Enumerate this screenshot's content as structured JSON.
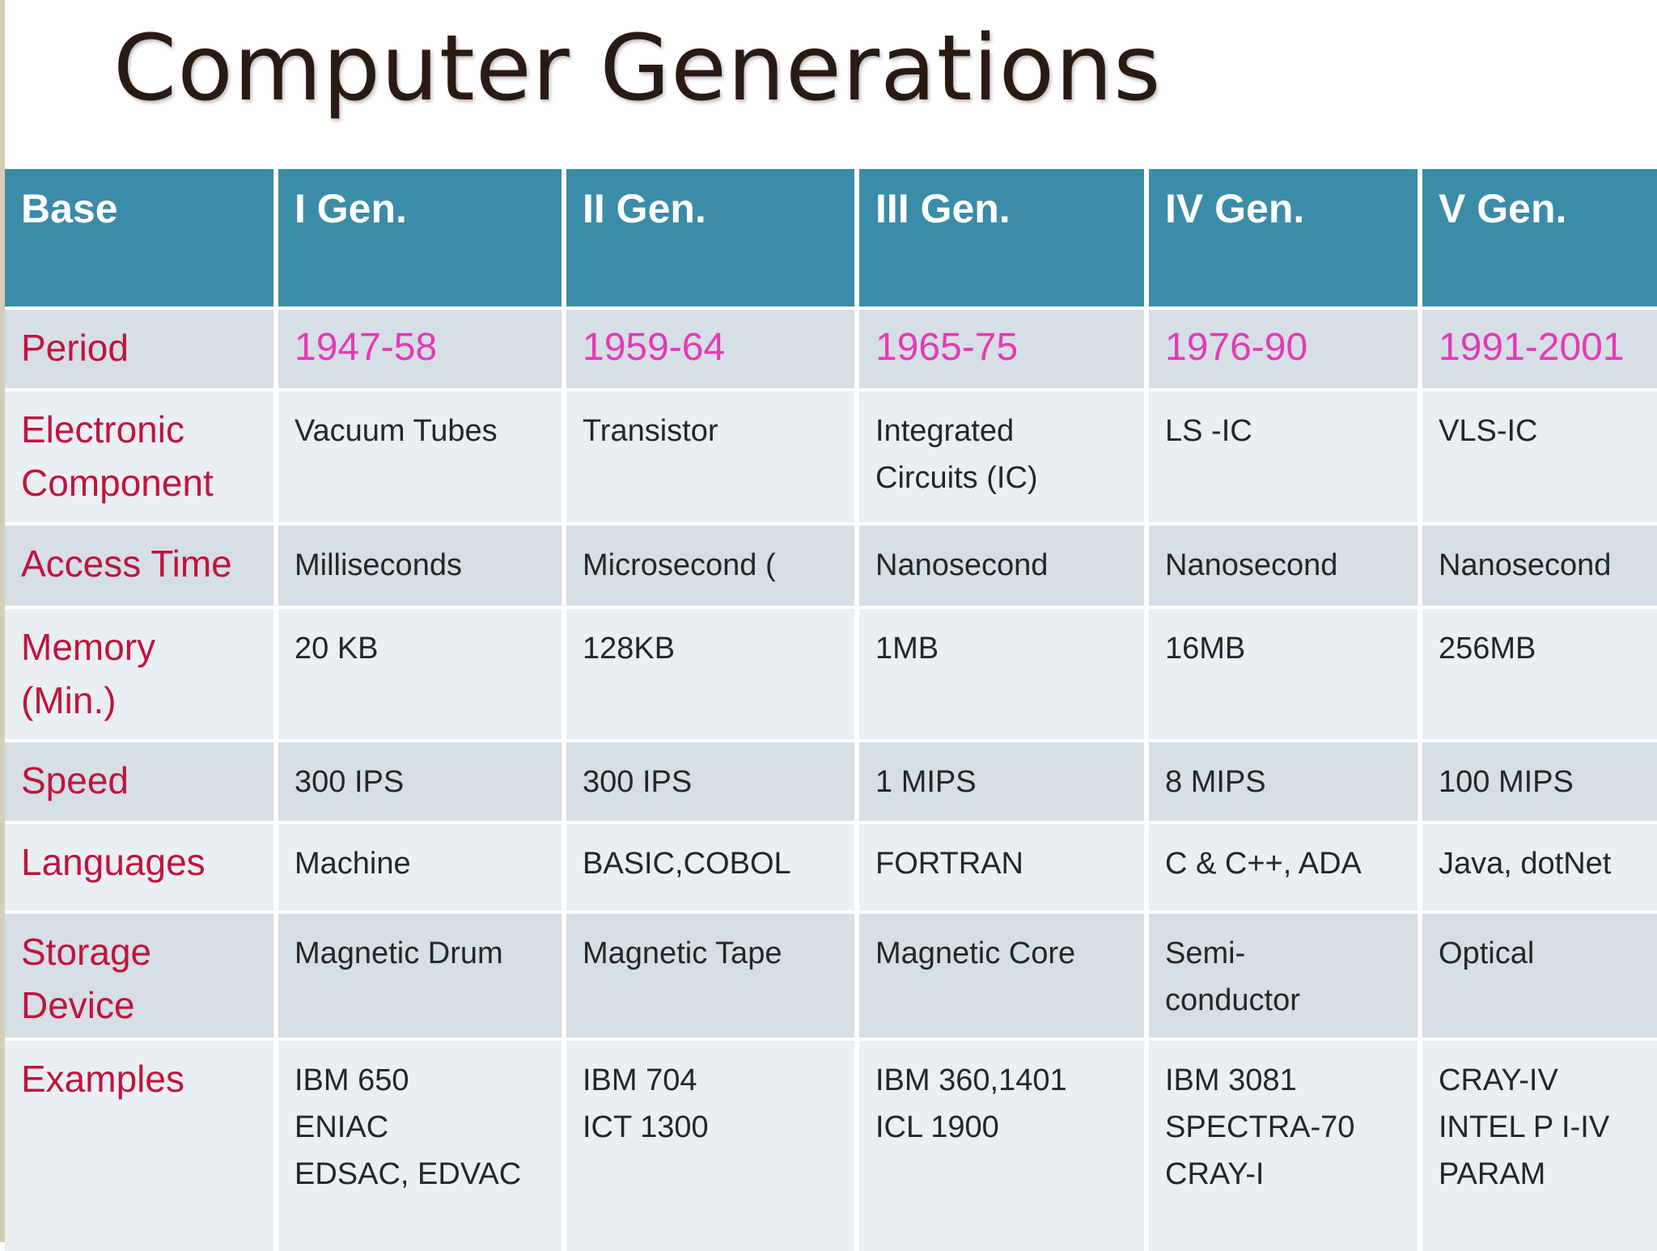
{
  "title": "Computer Generations",
  "table": {
    "headers": [
      "Base",
      "I Gen.",
      "II Gen.",
      "III Gen.",
      "IV Gen.",
      "V Gen."
    ],
    "rows": [
      {
        "label": "Period",
        "cells": [
          "1947-58",
          "1959-64",
          "1965-75",
          "1976-90",
          "1991-2001"
        ]
      },
      {
        "label": "Electronic\nComponent",
        "cells": [
          "Vacuum Tubes",
          "Transistor",
          "Integrated\nCircuits (IC)",
          "LS -IC",
          "VLS-IC"
        ]
      },
      {
        "label": "Access Time",
        "cells": [
          "Milliseconds",
          "Microsecond (",
          "Nanosecond",
          "Nanosecond",
          "Nanosecond"
        ]
      },
      {
        "label": "Memory\n(Min.)",
        "cells": [
          "20 KB",
          "128KB",
          "1MB",
          "16MB",
          "256MB"
        ]
      },
      {
        "label": "Speed",
        "cells": [
          "300 IPS",
          "300 IPS",
          "1 MIPS",
          "8 MIPS",
          "100 MIPS"
        ]
      },
      {
        "label": "Languages",
        "cells": [
          "Machine",
          "BASIC,COBOL",
          "FORTRAN",
          "C & C++, ADA",
          "Java, dotNet"
        ]
      },
      {
        "label": "Storage\nDevice",
        "cells": [
          "Magnetic Drum",
          "Magnetic Tape",
          "Magnetic Core",
          "Semi-\nconductor",
          "Optical"
        ]
      },
      {
        "label": "Examples",
        "cells": [
          "IBM 650\nENIAC\nEDSAC, EDVAC",
          "IBM 704\nICT 1300",
          "IBM 360,1401\nICL 1900",
          "IBM 3081\nSPECTRA-70\nCRAY-I",
          "CRAY-IV\nINTEL P I-IV\nPARAM"
        ]
      }
    ]
  }
}
